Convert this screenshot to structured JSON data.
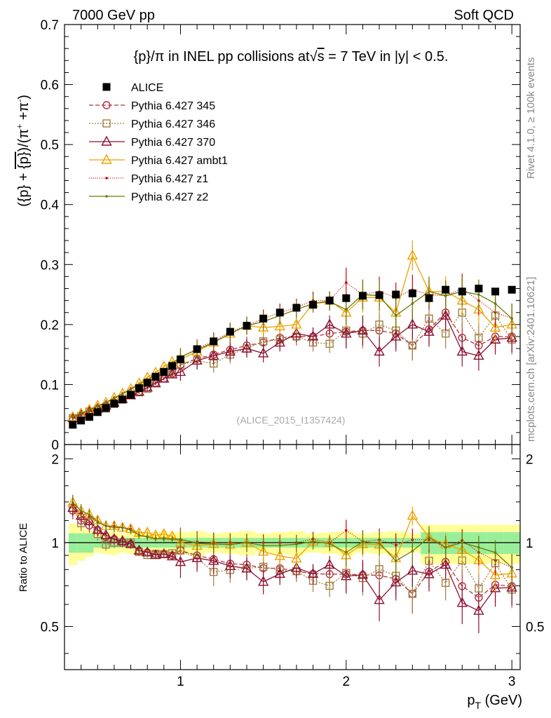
{
  "header": {
    "left": "7000 GeV pp",
    "right": "Soft QCD"
  },
  "side": {
    "rivet": "Rivet 4.1.0, ≥ 100k events",
    "mcplots": "mcplots.cern.ch [arXiv:2401.10621]"
  },
  "chart_data": {
    "type": "line",
    "title": "{p}/π in INEL pp collisions at√s = 7 TeV in |y| < 0.5.",
    "title_parts": {
      "pre": "{p}/π in INEL pp collisions at",
      "sqrt": "√",
      "s": "s",
      "post": " =  7 TeV in |y| < 0.5."
    },
    "ylabel": "({p} + {p̅})/(π⁺ + π⁻)",
    "ylabel_parts": {
      "a": "({p} + ",
      "b": "{p}",
      "c": ")/(π",
      "d": "+",
      "e": " +π",
      "f": "-",
      "g": ")"
    },
    "ratio_ylabel": "Ratio to ALICE",
    "xlabel": "p_T (GeV)",
    "xlabel_parts": {
      "p": "p",
      "sub": "T",
      "unit": " (GeV)"
    },
    "watermark": "(ALICE_2015_I1357424)",
    "xlim": [
      0.3,
      3.05
    ],
    "ylim": [
      0,
      0.7
    ],
    "ratio_ylim": [
      0.35,
      2.25
    ],
    "x_ticks": [
      "1",
      "2",
      "3"
    ],
    "x_tick_values": [
      1,
      2,
      3
    ],
    "y_ticks": [
      "0",
      "0.1",
      "0.2",
      "0.3",
      "0.4",
      "0.5",
      "0.6",
      "0.7"
    ],
    "y_tick_values": [
      0,
      0.1,
      0.2,
      0.3,
      0.4,
      0.5,
      0.6,
      0.7
    ],
    "ratio_ticks": [
      "0.5",
      "1",
      "2"
    ],
    "ratio_tick_values": [
      0.5,
      1,
      2
    ],
    "x": [
      0.35,
      0.4,
      0.45,
      0.5,
      0.55,
      0.6,
      0.65,
      0.7,
      0.75,
      0.8,
      0.85,
      0.9,
      0.95,
      1.0,
      1.1,
      1.2,
      1.3,
      1.4,
      1.5,
      1.6,
      1.7,
      1.8,
      1.9,
      2.0,
      2.1,
      2.2,
      2.3,
      2.4,
      2.5,
      2.6,
      2.7,
      2.8,
      2.9,
      3.0
    ],
    "data": {
      "name": "ALICE",
      "values": [
        0.033,
        0.04,
        0.046,
        0.054,
        0.061,
        0.068,
        0.075,
        0.083,
        0.094,
        0.103,
        0.113,
        0.121,
        0.131,
        0.142,
        0.159,
        0.172,
        0.188,
        0.198,
        0.21,
        0.22,
        0.228,
        0.233,
        0.24,
        0.244,
        0.248,
        0.249,
        0.25,
        0.252,
        0.244,
        0.258,
        0.255,
        0.26,
        0.255,
        0.258
      ]
    },
    "series": [
      {
        "name": "Pythia 6.427 345",
        "color": "#b03040",
        "dash": "6,3",
        "marker": "circle",
        "values": [
          0.043,
          0.048,
          0.053,
          0.06,
          0.064,
          0.07,
          0.075,
          0.082,
          0.088,
          0.095,
          0.103,
          0.11,
          0.118,
          0.133,
          0.143,
          0.15,
          0.158,
          0.165,
          0.17,
          0.178,
          0.18,
          0.18,
          0.185,
          0.188,
          0.19,
          0.19,
          0.185,
          0.165,
          0.192,
          0.22,
          0.178,
          0.165,
          0.18,
          0.18
        ]
      },
      {
        "name": "Pythia 6.427 346",
        "color": "#a08040",
        "dash": "2,2",
        "marker": "square",
        "values": [
          0.044,
          0.047,
          0.055,
          0.058,
          0.06,
          0.068,
          0.075,
          0.083,
          0.087,
          0.093,
          0.103,
          0.11,
          0.12,
          0.133,
          0.14,
          0.135,
          0.15,
          0.16,
          0.172,
          0.175,
          0.18,
          0.17,
          0.168,
          0.19,
          0.185,
          0.2,
          0.19,
          0.165,
          0.21,
          0.185,
          0.22,
          0.178,
          0.215,
          0.175
        ]
      },
      {
        "name": "Pythia 6.427 370",
        "color": "#8b1030",
        "dash": "",
        "marker": "triangle",
        "values": [
          0.044,
          0.05,
          0.055,
          0.06,
          0.065,
          0.07,
          0.076,
          0.082,
          0.088,
          0.095,
          0.102,
          0.11,
          0.117,
          0.121,
          0.14,
          0.148,
          0.155,
          0.16,
          0.152,
          0.17,
          0.185,
          0.18,
          0.2,
          0.185,
          0.19,
          0.155,
          0.18,
          0.2,
          0.188,
          0.215,
          0.155,
          0.148,
          0.175,
          0.178
        ]
      },
      {
        "name": "Pythia 6.427 ambt1",
        "color": "#f0a000",
        "dash": "",
        "marker": "triangle",
        "values": [
          0.046,
          0.052,
          0.058,
          0.065,
          0.07,
          0.078,
          0.085,
          0.093,
          0.102,
          0.112,
          0.12,
          0.13,
          0.138,
          0.142,
          0.155,
          0.17,
          0.185,
          0.198,
          0.195,
          0.197,
          0.2,
          0.235,
          0.24,
          0.22,
          0.245,
          0.245,
          0.22,
          0.315,
          0.255,
          0.255,
          0.24,
          0.225,
          0.195,
          0.2
        ]
      },
      {
        "name": "Pythia 6.427 z1",
        "color": "#d00000",
        "dash": "1,2",
        "marker": "dot",
        "values": [
          0.045,
          0.051,
          0.057,
          0.064,
          0.07,
          0.078,
          0.085,
          0.093,
          0.1,
          0.108,
          0.117,
          0.125,
          0.135,
          0.145,
          0.16,
          0.172,
          0.188,
          0.198,
          0.21,
          0.22,
          0.228,
          0.24,
          0.24,
          0.27,
          0.25,
          0.255,
          0.245,
          0.258,
          0.25,
          0.248,
          0.26,
          0.24,
          0.22,
          0.21
        ]
      },
      {
        "name": "Pythia 6.427 z2",
        "color": "#6b7a00",
        "dash": "",
        "marker": "dot",
        "values": [
          0.046,
          0.052,
          0.058,
          0.064,
          0.07,
          0.077,
          0.085,
          0.092,
          0.1,
          0.108,
          0.117,
          0.125,
          0.135,
          0.146,
          0.158,
          0.17,
          0.185,
          0.198,
          0.205,
          0.215,
          0.225,
          0.235,
          0.238,
          0.225,
          0.25,
          0.248,
          0.215,
          0.235,
          0.255,
          0.248,
          0.255,
          0.25,
          0.235,
          0.21
        ]
      }
    ]
  }
}
